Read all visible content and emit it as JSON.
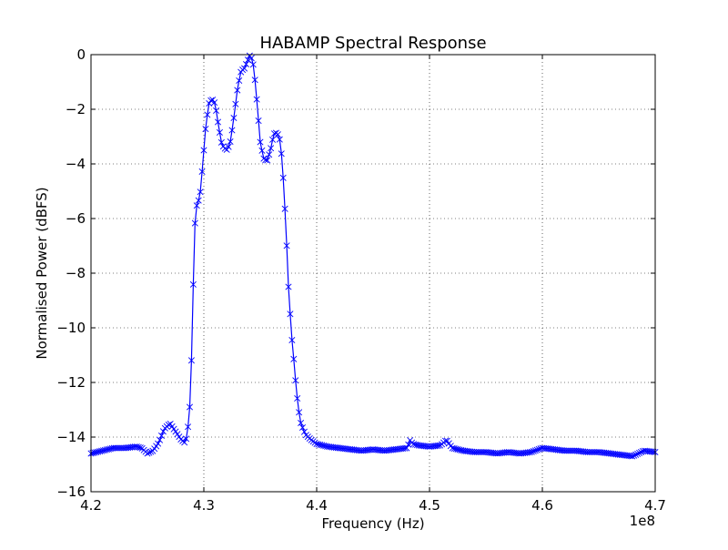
{
  "chart_data": {
    "type": "line",
    "title": "HABAMP Spectral Response",
    "xlabel": "Frequency (Hz)",
    "ylabel": "Normalised Power (dBFS)",
    "x_multiplier_label": "1e8",
    "xlim": [
      4.2,
      4.7
    ],
    "ylim": [
      -16,
      0
    ],
    "x_ticks": [
      "4.2",
      "4.3",
      "4.4",
      "4.5",
      "4.6",
      "4.7"
    ],
    "y_ticks": [
      "0",
      "−2",
      "−4",
      "−6",
      "−8",
      "−10",
      "−12",
      "−14",
      "−16"
    ],
    "grid": true,
    "line_color": "#0000ff",
    "marker": "x",
    "series": [
      {
        "x": [
          4.2,
          4.21,
          4.22,
          4.23,
          4.24,
          4.245,
          4.25,
          4.255,
          4.26,
          4.265,
          4.27,
          4.275,
          4.28,
          4.283,
          4.285,
          4.287,
          4.288,
          4.289,
          4.29,
          4.291,
          4.292,
          4.293,
          4.295,
          4.297,
          4.3,
          4.302,
          4.305,
          4.308,
          4.31,
          4.313,
          4.316,
          4.32,
          4.323,
          4.326,
          4.33,
          4.333,
          4.336,
          4.339,
          4.341,
          4.342,
          4.344,
          4.346,
          4.348,
          4.35,
          4.353,
          4.356,
          4.359,
          4.362,
          4.365,
          4.368,
          4.371,
          4.373,
          4.374,
          4.375,
          4.376,
          4.377,
          4.378,
          4.379,
          4.38,
          4.382,
          4.384,
          4.386,
          4.39,
          4.395,
          4.4,
          4.41,
          4.42,
          4.43,
          4.44,
          4.45,
          4.46,
          4.47,
          4.48,
          4.483,
          4.485,
          4.49,
          4.5,
          4.51,
          4.515,
          4.52,
          4.53,
          4.54,
          4.55,
          4.56,
          4.57,
          4.58,
          4.59,
          4.6,
          4.61,
          4.62,
          4.63,
          4.64,
          4.65,
          4.66,
          4.67,
          4.68,
          4.69,
          4.7
        ],
        "y": [
          -14.6,
          -14.5,
          -14.4,
          -14.4,
          -14.35,
          -14.4,
          -14.6,
          -14.5,
          -14.2,
          -13.7,
          -13.5,
          -13.8,
          -14.1,
          -14.2,
          -14.0,
          -13.2,
          -12.6,
          -11.3,
          -9.6,
          -7.7,
          -6.3,
          -5.6,
          -5.4,
          -5.0,
          -3.5,
          -2.5,
          -1.7,
          -1.65,
          -1.8,
          -2.6,
          -3.3,
          -3.5,
          -3.3,
          -2.5,
          -1.2,
          -0.6,
          -0.5,
          -0.2,
          0.0,
          -0.1,
          -0.4,
          -1.2,
          -2.2,
          -3.2,
          -3.8,
          -3.9,
          -3.5,
          -2.9,
          -2.85,
          -3.2,
          -4.9,
          -6.6,
          -7.5,
          -8.5,
          -9.1,
          -9.8,
          -10.4,
          -10.8,
          -11.3,
          -12.3,
          -13.0,
          -13.5,
          -13.9,
          -14.1,
          -14.25,
          -14.35,
          -14.4,
          -14.45,
          -14.5,
          -14.45,
          -14.5,
          -14.45,
          -14.4,
          -14.1,
          -14.25,
          -14.3,
          -14.35,
          -14.3,
          -14.1,
          -14.4,
          -14.5,
          -14.55,
          -14.55,
          -14.6,
          -14.55,
          -14.6,
          -14.55,
          -14.4,
          -14.45,
          -14.5,
          -14.5,
          -14.55,
          -14.55,
          -14.6,
          -14.65,
          -14.7,
          -14.5,
          -14.55
        ]
      }
    ]
  }
}
